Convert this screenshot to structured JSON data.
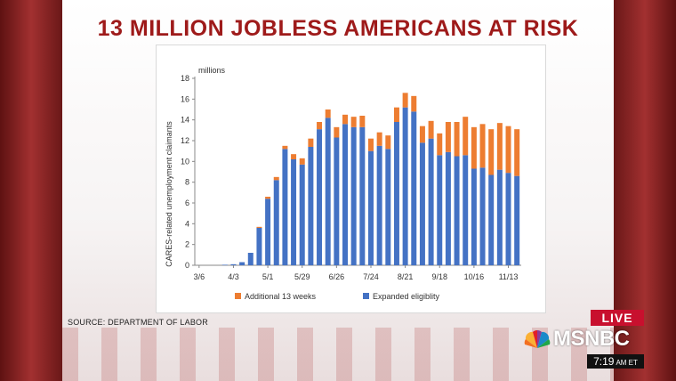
{
  "headline": "13 MILLION JOBLESS AMERICANS AT RISK",
  "source": "SOURCE: DEPARTMENT OF LABOR",
  "live_label": "LIVE",
  "network": "MSNBC",
  "clock": {
    "time": "7:19",
    "suffix": "AM ET"
  },
  "colors": {
    "expanded": "#4472c4",
    "additional": "#ed7d31",
    "headline": "#9e1a1a",
    "live": "#c8102e"
  },
  "chart_data": {
    "type": "bar",
    "stacked": true,
    "unit_label": "millions",
    "ylabel": "CARES-related unemployment claimants",
    "ylim": [
      0,
      18
    ],
    "yticks": [
      0,
      2,
      4,
      6,
      8,
      10,
      12,
      14,
      16,
      18
    ],
    "xtick_labels": [
      "3/6",
      "4/3",
      "5/1",
      "5/29",
      "6/26",
      "7/24",
      "8/21",
      "9/18",
      "10/16",
      "11/13"
    ],
    "xtick_every": 4,
    "legend_position": "bottom",
    "grid": false,
    "series": [
      {
        "name": "Expanded eligiblity",
        "color": "#4472c4",
        "values": [
          0,
          0,
          0,
          0.05,
          0.1,
          0.3,
          1.2,
          3.6,
          6.4,
          8.2,
          11.2,
          10.2,
          9.7,
          11.4,
          13.1,
          14.2,
          12.3,
          13.6,
          13.3,
          13.3,
          11.0,
          11.5,
          11.2,
          13.8,
          15.2,
          14.8,
          11.8,
          12.2,
          10.6,
          10.9,
          10.5,
          10.6,
          9.3,
          9.4,
          8.7,
          9.2,
          8.9,
          8.6
        ]
      },
      {
        "name": "Additional 13 weeks",
        "color": "#ed7d31",
        "values": [
          0,
          0,
          0,
          0,
          0,
          0,
          0,
          0.1,
          0.2,
          0.3,
          0.3,
          0.5,
          0.6,
          0.8,
          0.7,
          0.8,
          1.0,
          0.9,
          1.0,
          1.1,
          1.2,
          1.3,
          1.3,
          1.4,
          1.4,
          1.5,
          1.6,
          1.7,
          2.1,
          2.9,
          3.3,
          3.7,
          4.0,
          4.2,
          4.4,
          4.5,
          4.5,
          4.5
        ]
      }
    ]
  }
}
